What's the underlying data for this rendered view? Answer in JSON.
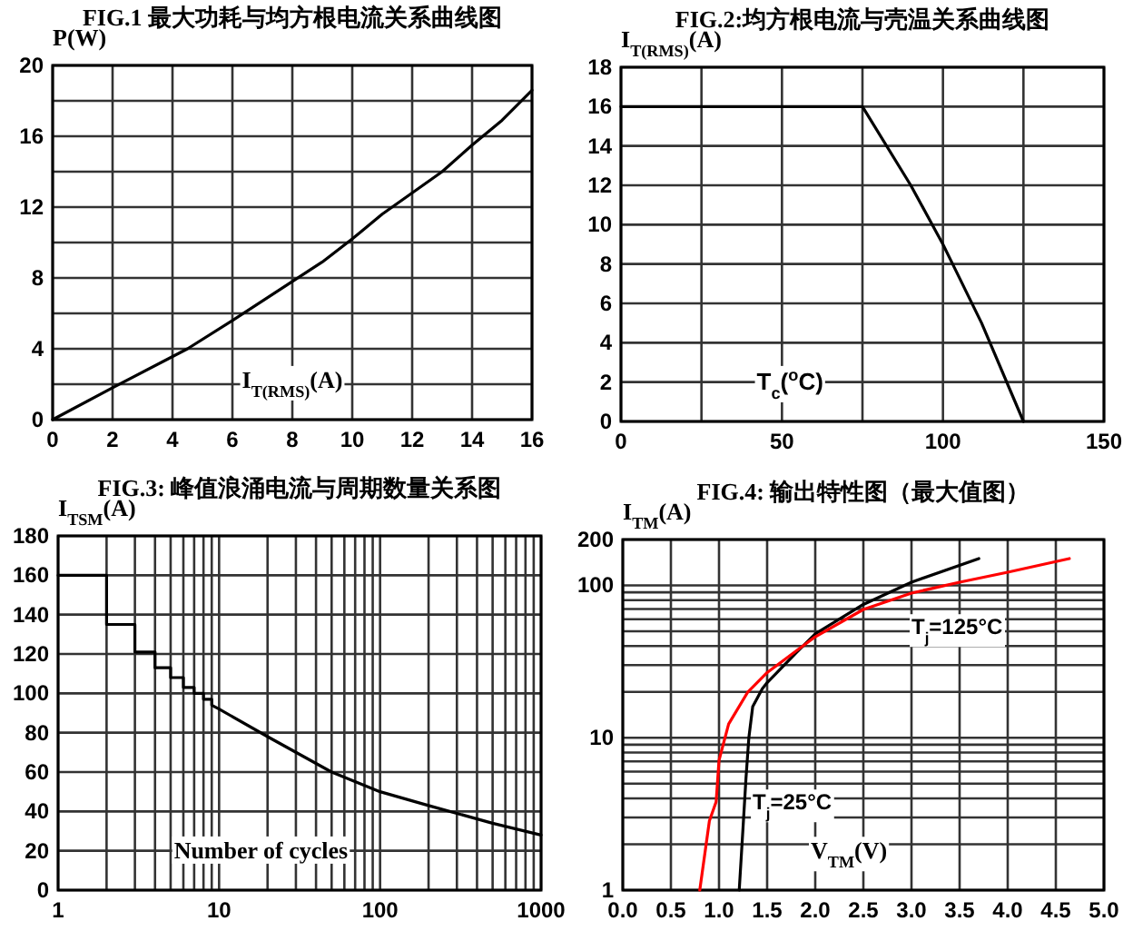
{
  "chart_data": [
    {
      "type": "line",
      "title": "FIG.1  最大功耗与均方根电流关系曲线图",
      "ylabel": "P(W)",
      "xlabel": "I$_{T(RMS)}$(A)",
      "xlim": [
        0,
        16
      ],
      "xticks": [
        0,
        2,
        4,
        6,
        8,
        10,
        12,
        14,
        16
      ],
      "ylim": [
        0,
        20
      ],
      "yticks": [
        0,
        {
          "value": 2,
          "label": null
        },
        4,
        {
          "value": 6,
          "label": null
        },
        8,
        {
          "value": 10,
          "label": null
        },
        12,
        {
          "value": 14,
          "label": null
        },
        16,
        {
          "value": 18,
          "label": null
        },
        20
      ],
      "grid": true,
      "series": [
        {
          "color": "#000000",
          "x": [
            0,
            2,
            4.5,
            6,
            8,
            9,
            10,
            11,
            13,
            14,
            15,
            16
          ],
          "values": [
            0,
            1.8,
            4,
            5.6,
            7.8,
            8.9,
            10.2,
            11.6,
            14,
            15.5,
            16.9,
            18.6
          ]
        }
      ]
    },
    {
      "type": "line",
      "title": "FIG.2:均方根电流与壳温关系曲线图",
      "ylabel": "I$_{T(RMS)}$(A)",
      "xlabel": "T$_{c}$($^{o}$C)",
      "xlim": [
        0,
        150
      ],
      "xticks": [
        0,
        {
          "value": 25,
          "label": null
        },
        50,
        {
          "value": 75,
          "label": null
        },
        100,
        {
          "value": 125,
          "label": null
        },
        150
      ],
      "ylim": [
        0,
        18
      ],
      "yticks": [
        0,
        2,
        4,
        6,
        8,
        10,
        12,
        14,
        16,
        18
      ],
      "grid": true,
      "series": [
        {
          "color": "#000000",
          "x": [
            0,
            75,
            90,
            100,
            103,
            112,
            125
          ],
          "values": [
            16,
            16,
            12,
            9,
            8,
            5,
            0
          ]
        }
      ]
    },
    {
      "type": "line",
      "title": "FIG.3: 峰值浪涌电流与周期数量关系图",
      "ylabel": "I$_{TSM}$(A)",
      "xlabel": "Number of cycles",
      "log": "x",
      "xlim": [
        1,
        1000
      ],
      "xticks": [
        1,
        {
          "value": 2,
          "label": null
        },
        {
          "value": 3,
          "label": null
        },
        {
          "value": 4,
          "label": null
        },
        {
          "value": 5,
          "label": null
        },
        {
          "value": 6,
          "label": null
        },
        {
          "value": 7,
          "label": null
        },
        {
          "value": 8,
          "label": null
        },
        {
          "value": 9,
          "label": null
        },
        10,
        {
          "value": 20,
          "label": null
        },
        {
          "value": 30,
          "label": null
        },
        {
          "value": 40,
          "label": null
        },
        {
          "value": 50,
          "label": null
        },
        {
          "value": 60,
          "label": null
        },
        {
          "value": 70,
          "label": null
        },
        {
          "value": 80,
          "label": null
        },
        {
          "value": 90,
          "label": null
        },
        100,
        {
          "value": 200,
          "label": null
        },
        {
          "value": 300,
          "label": null
        },
        {
          "value": 400,
          "label": null
        },
        {
          "value": 500,
          "label": null
        },
        {
          "value": 600,
          "label": null
        },
        {
          "value": 700,
          "label": null
        },
        {
          "value": 800,
          "label": null
        },
        {
          "value": 900,
          "label": null
        },
        1000
      ],
      "ylim": [
        0,
        180
      ],
      "yticks": [
        0,
        20,
        40,
        60,
        80,
        100,
        120,
        140,
        160,
        180
      ],
      "grid": true,
      "series": [
        {
          "color": "#000000",
          "x": [
            1,
            2,
            2,
            3,
            3,
            4,
            4,
            5,
            5,
            6,
            6,
            7,
            7,
            8,
            8,
            9,
            9,
            10,
            20,
            50,
            100,
            200,
            500,
            1000
          ],
          "values": [
            160,
            160,
            135,
            135,
            121,
            121,
            113,
            113,
            108,
            108,
            103,
            103,
            100,
            100,
            97,
            97,
            94,
            92,
            78,
            60,
            50,
            43,
            34,
            28
          ]
        }
      ]
    },
    {
      "type": "line",
      "title": "FIG.4: 输出特性图（最大值图）",
      "ylabel": "I$_{TM}$(A)",
      "xlabel": "V$_{TM}$(V)",
      "log": "y",
      "xlim": [
        0,
        5
      ],
      "xticks": [
        {
          "value": 0,
          "label": "0.0"
        },
        0.5,
        {
          "value": 1,
          "label": "1.0"
        },
        1.5,
        {
          "value": 2,
          "label": "2.0"
        },
        2.5,
        {
          "value": 3,
          "label": "3.0"
        },
        3.5,
        {
          "value": 4,
          "label": "4.0"
        },
        4.5,
        {
          "value": 5,
          "label": "5.0"
        }
      ],
      "ylim": [
        1,
        200
      ],
      "yticks": [
        1,
        {
          "value": 2,
          "label": null
        },
        {
          "value": 3,
          "label": null
        },
        {
          "value": 4,
          "label": null
        },
        {
          "value": 5,
          "label": null
        },
        {
          "value": 6,
          "label": null
        },
        {
          "value": 7,
          "label": null
        },
        {
          "value": 8,
          "label": null
        },
        {
          "value": 9,
          "label": null
        },
        10,
        {
          "value": 20,
          "label": null
        },
        {
          "value": 30,
          "label": null
        },
        {
          "value": 40,
          "label": null
        },
        {
          "value": 50,
          "label": null
        },
        {
          "value": 60,
          "label": null
        },
        {
          "value": 70,
          "label": null
        },
        {
          "value": 80,
          "label": null
        },
        {
          "value": 90,
          "label": null
        },
        100,
        200
      ],
      "grid": true,
      "series": [
        {
          "color": "#000000",
          "x": [
            1.21,
            1.25,
            1.28,
            1.31,
            1.35,
            1.45,
            1.5,
            1.8,
            2.0,
            2.5,
            3.0,
            3.7
          ],
          "values": [
            1,
            2.6,
            5.4,
            10,
            16,
            21,
            23,
            36,
            48,
            75,
            105,
            150
          ]
        },
        {
          "color": "#ff0000",
          "x": [
            0.8,
            0.9,
            0.97,
            1.0,
            1.1,
            1.3,
            1.5,
            2.0,
            2.5,
            3.0,
            3.5,
            4.0,
            4.64
          ],
          "values": [
            1,
            2.85,
            3.8,
            7.1,
            12.3,
            20,
            26.8,
            46,
            69.5,
            89,
            105,
            122,
            150
          ]
        }
      ],
      "annotations": [
        "T$_{j}$=125°C",
        "T$_{j}$=25°C"
      ]
    }
  ]
}
